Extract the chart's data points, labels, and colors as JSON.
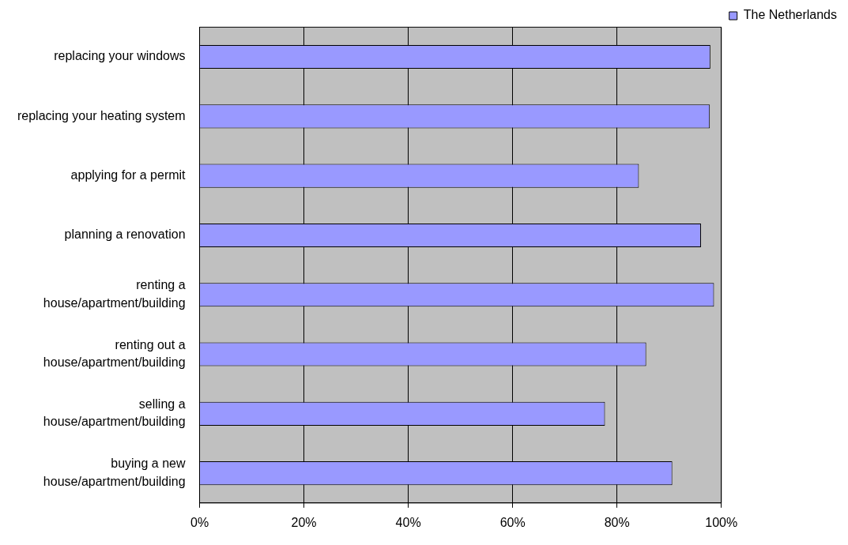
{
  "chart_data": {
    "type": "bar",
    "orientation": "horizontal",
    "categories": [
      "replacing your windows",
      "replacing your heating system",
      "applying for a permit",
      "planning a renovation",
      "renting a house/apartment/building",
      "renting out a house/apartment/building",
      "selling a house/apartment/building",
      "buying a new house/apartment/building"
    ],
    "series": [
      {
        "name": "The Netherlands",
        "color": "#9999ff",
        "values": [
          97.9,
          97.8,
          84.2,
          96.1,
          98.6,
          85.6,
          77.7,
          90.6
        ]
      }
    ],
    "xlim": [
      0,
      100
    ],
    "xticks": [
      {
        "value": 0,
        "label": "0%"
      },
      {
        "value": 20,
        "label": "20%"
      },
      {
        "value": 40,
        "label": "40%"
      },
      {
        "value": 60,
        "label": "60%"
      },
      {
        "value": 80,
        "label": "80%"
      },
      {
        "value": 100,
        "label": "100%"
      }
    ],
    "grid": "x",
    "legend": "top right"
  }
}
